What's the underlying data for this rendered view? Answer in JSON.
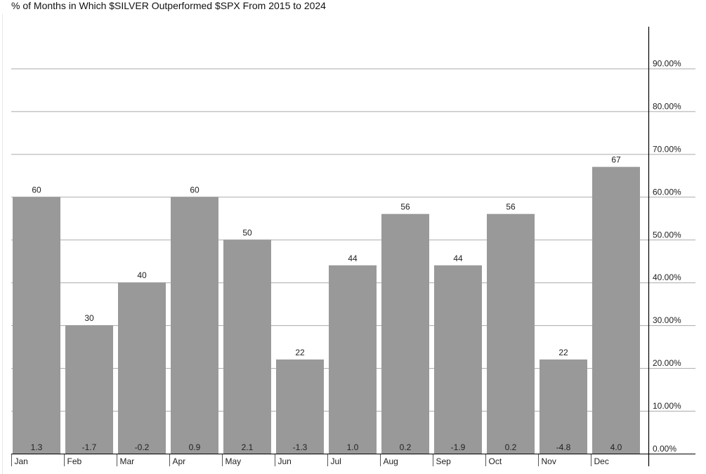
{
  "chart_data": {
    "type": "bar",
    "title": "% of Months in Which $SILVER Outperformed $SPX From 2015 to 2024",
    "categories": [
      "Jan",
      "Feb",
      "Mar",
      "Apr",
      "May",
      "Jun",
      "Jul",
      "Aug",
      "Sep",
      "Oct",
      "Nov",
      "Dec"
    ],
    "series": [
      {
        "values": [
          60,
          30,
          40,
          60,
          50,
          22,
          44,
          56,
          44,
          56,
          22,
          67
        ]
      }
    ],
    "secondary_labels": [
      "1.3",
      "-1.7",
      "-0.2",
      "0.9",
      "2.1",
      "-1.3",
      "1.0",
      "0.2",
      "-1.9",
      "0.2",
      "-4.8",
      "4.0"
    ],
    "y_ticks": [
      "0.00%",
      "10.00%",
      "20.00%",
      "30.00%",
      "40.00%",
      "50.00%",
      "60.00%",
      "70.00%",
      "80.00%",
      "90.00%"
    ],
    "ylim": [
      0,
      100
    ],
    "y_axis_position": "right",
    "grid": true,
    "colors": {
      "bar": "#999999",
      "grid": "#aaaaaa",
      "axis": "#000000"
    }
  }
}
